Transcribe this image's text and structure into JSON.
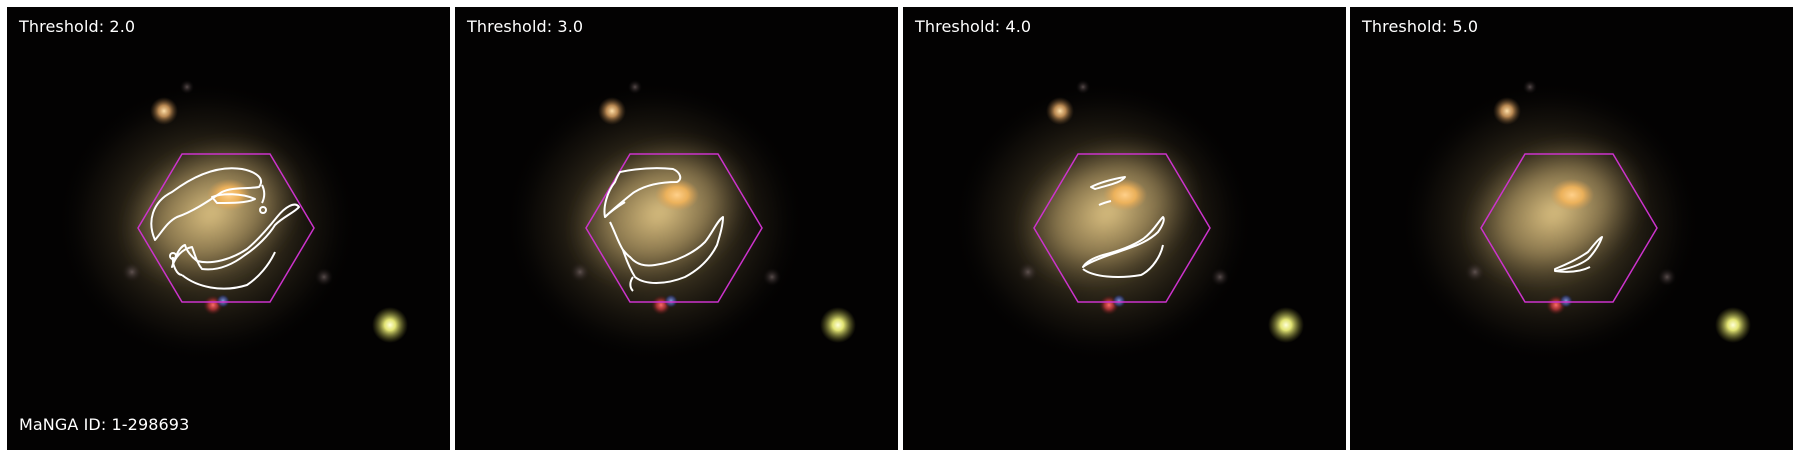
{
  "colors": {
    "background": "#030202",
    "hexagon": "#cc33cc",
    "contour": "#ffffff",
    "label": "#ffffff",
    "galaxy_core": "#f2b45a",
    "galaxy_halo": "#8a7648"
  },
  "panels": [
    {
      "threshold_label": "Threshold: 2.0",
      "footer_label": "MaNGA ID: 1-298693"
    },
    {
      "threshold_label": "Threshold: 3.0",
      "footer_label": ""
    },
    {
      "threshold_label": "Threshold: 4.0",
      "footer_label": ""
    },
    {
      "threshold_label": "Threshold: 5.0",
      "footer_label": ""
    }
  ]
}
